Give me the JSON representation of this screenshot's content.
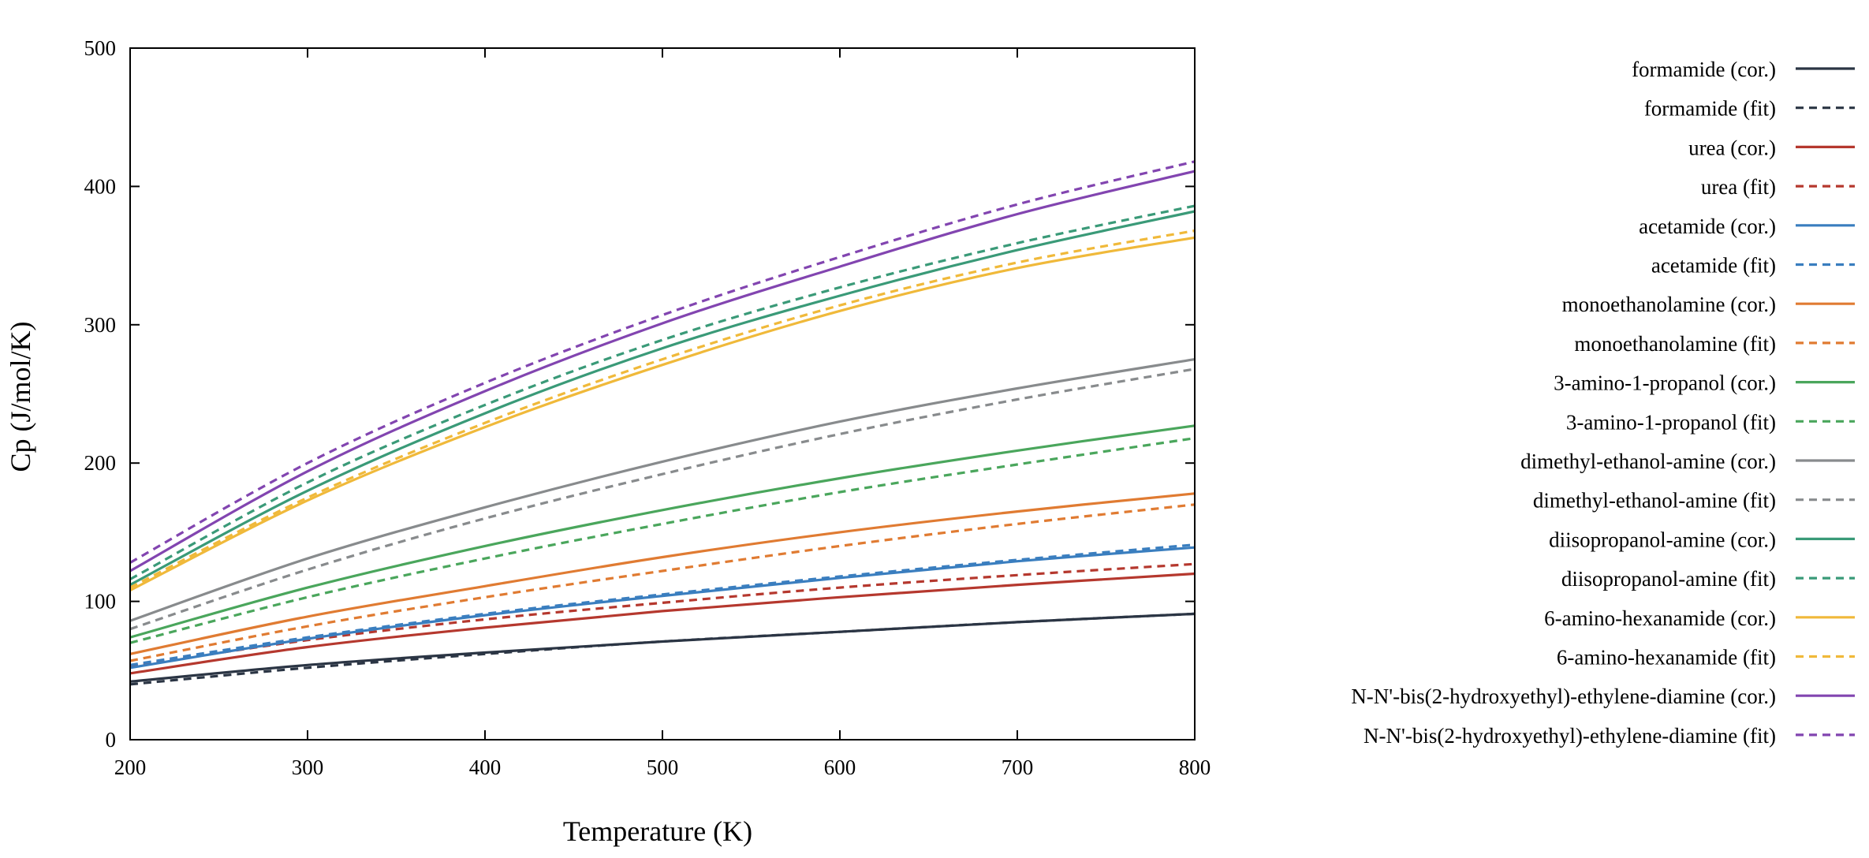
{
  "chart_data": {
    "type": "line",
    "title": "",
    "xlabel": "Temperature (K)",
    "ylabel": "Cp (J/mol/K)",
    "xlim": [
      200,
      800
    ],
    "ylim": [
      0,
      500
    ],
    "xticks": [
      200,
      300,
      400,
      500,
      600,
      700,
      800
    ],
    "yticks": [
      0,
      100,
      200,
      300,
      400,
      500
    ],
    "grid": false,
    "legend_position": "right",
    "x": [
      200,
      300,
      400,
      500,
      600,
      700,
      800
    ],
    "series": [
      {
        "name": "formamide (cor.)",
        "style": "solid",
        "color": "#2b3544",
        "values": [
          42,
          54,
          63,
          71,
          78,
          85,
          91
        ]
      },
      {
        "name": "formamide (fit)",
        "style": "dashed",
        "color": "#2b3544",
        "values": [
          40,
          52,
          62,
          71,
          78,
          85,
          91
        ]
      },
      {
        "name": "urea (cor.)",
        "style": "solid",
        "color": "#b5382e",
        "values": [
          48,
          67,
          81,
          93,
          103,
          112,
          120
        ]
      },
      {
        "name": "urea (fit)",
        "style": "dashed",
        "color": "#b5382e",
        "values": [
          53,
          72,
          87,
          99,
          110,
          119,
          127
        ]
      },
      {
        "name": "acetamide (cor.)",
        "style": "solid",
        "color": "#3a7ebf",
        "values": [
          52,
          73,
          90,
          104,
          117,
          129,
          139
        ]
      },
      {
        "name": "acetamide (fit)",
        "style": "dashed",
        "color": "#3a7ebf",
        "values": [
          54,
          74,
          91,
          105,
          118,
          130,
          141
        ]
      },
      {
        "name": "monoethanolamine (cor.)",
        "style": "solid",
        "color": "#e07b32",
        "values": [
          62,
          89,
          111,
          132,
          150,
          165,
          178
        ]
      },
      {
        "name": "monoethanolamine (fit)",
        "style": "dashed",
        "color": "#e07b32",
        "values": [
          57,
          82,
          103,
          122,
          140,
          156,
          170
        ]
      },
      {
        "name": "3-amino-1-propanol (cor.)",
        "style": "solid",
        "color": "#4aa65c",
        "values": [
          74,
          110,
          140,
          166,
          189,
          209,
          227
        ]
      },
      {
        "name": "3-amino-1-propanol (fit)",
        "style": "dashed",
        "color": "#4aa65c",
        "values": [
          70,
          103,
          131,
          156,
          179,
          199,
          218
        ]
      },
      {
        "name": "dimethyl-ethanol-amine (cor.)",
        "style": "solid",
        "color": "#888b8d",
        "values": [
          86,
          131,
          168,
          201,
          230,
          254,
          275
        ]
      },
      {
        "name": "dimethyl-ethanol-amine (fit)",
        "style": "dashed",
        "color": "#888b8d",
        "values": [
          80,
          123,
          160,
          192,
          221,
          246,
          268
        ]
      },
      {
        "name": "diisopropanol-amine (cor.)",
        "style": "solid",
        "color": "#3a9a78",
        "values": [
          112,
          180,
          236,
          283,
          321,
          354,
          382
        ]
      },
      {
        "name": "diisopropanol-amine (fit)",
        "style": "dashed",
        "color": "#3a9a78",
        "values": [
          116,
          186,
          242,
          289,
          327,
          359,
          386
        ]
      },
      {
        "name": "6-amino-hexanamide (cor.)",
        "style": "solid",
        "color": "#f0b93a",
        "values": [
          108,
          173,
          226,
          271,
          310,
          341,
          363
        ]
      },
      {
        "name": "6-amino-hexanamide (fit)",
        "style": "dashed",
        "color": "#f0b93a",
        "values": [
          110,
          175,
          229,
          275,
          314,
          345,
          368
        ]
      },
      {
        "name": "N-N'-bis(2-hydroxyethyl)-ethylene-diamine (cor.)",
        "style": "solid",
        "color": "#8245b0",
        "values": [
          122,
          194,
          252,
          301,
          342,
          380,
          411
        ]
      },
      {
        "name": "N-N'-bis(2-hydroxyethyl)-ethylene-diamine (fit)",
        "style": "dashed",
        "color": "#8245b0",
        "values": [
          128,
          200,
          258,
          307,
          349,
          387,
          418
        ]
      }
    ]
  }
}
